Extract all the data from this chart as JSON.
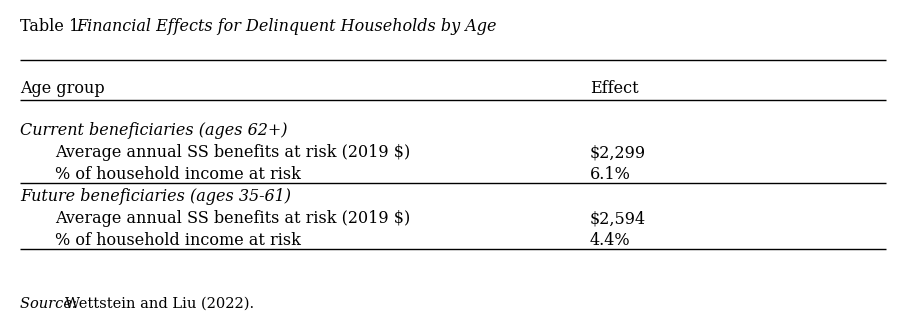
{
  "title_prefix": "Table 1. ",
  "title_italic": "Financial Effects for Delinquent Households by Age",
  "col_headers": [
    "Age group",
    "Effect"
  ],
  "rows": [
    {
      "label": "Current beneficiaries (ages 62+)",
      "value": "",
      "italic": true,
      "indent": false
    },
    {
      "label": "Average annual SS benefits at risk (2019 $)",
      "value": "$2,299",
      "italic": false,
      "indent": true
    },
    {
      "label": "% of household income at risk",
      "value": "6.1%",
      "italic": false,
      "indent": true
    },
    {
      "label": "Future beneficiaries (ages 35-61)",
      "value": "",
      "italic": true,
      "indent": false
    },
    {
      "label": "Average annual SS benefits at risk (2019 $)",
      "value": "$2,594",
      "italic": false,
      "indent": true
    },
    {
      "label": "% of household income at risk",
      "value": "4.4%",
      "italic": false,
      "indent": true
    }
  ],
  "source_prefix": "Source: ",
  "source_text": "Wettstein and Liu (2022).",
  "bg_color": "#ffffff",
  "text_color": "#000000",
  "line_color": "#000000",
  "figsize": [
    9.06,
    3.29
  ],
  "dpi": 100,
  "font_size": 11.5
}
